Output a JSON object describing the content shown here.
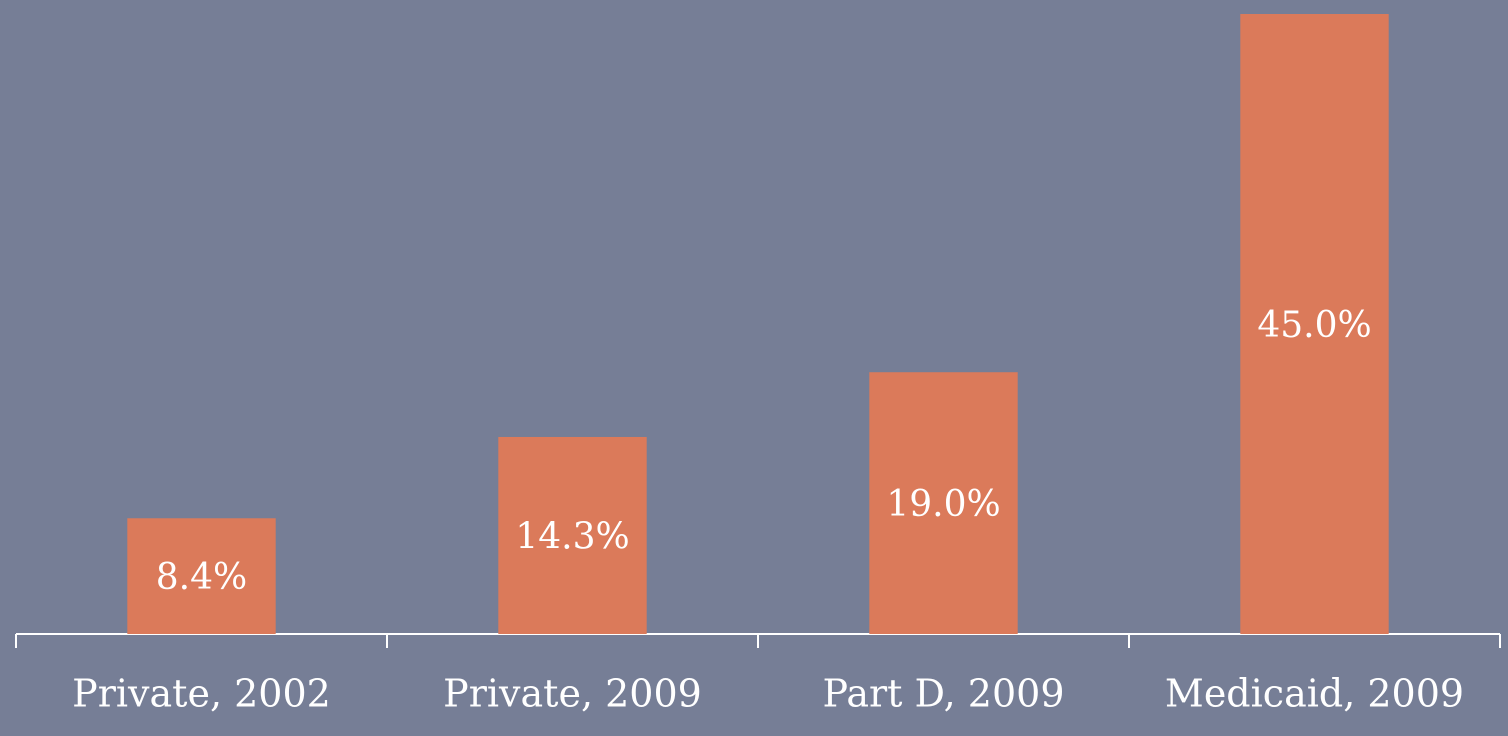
{
  "chart_data": {
    "type": "bar",
    "categories": [
      "Private, 2002",
      "Private, 2009",
      "Part D, 2009",
      "Medicaid, 2009"
    ],
    "values": [
      8.4,
      14.3,
      19.0,
      45.0
    ],
    "value_labels": [
      "8.4%",
      "14.3%",
      "19.0%",
      "45.0%"
    ],
    "color": "#db7a5a"
  }
}
